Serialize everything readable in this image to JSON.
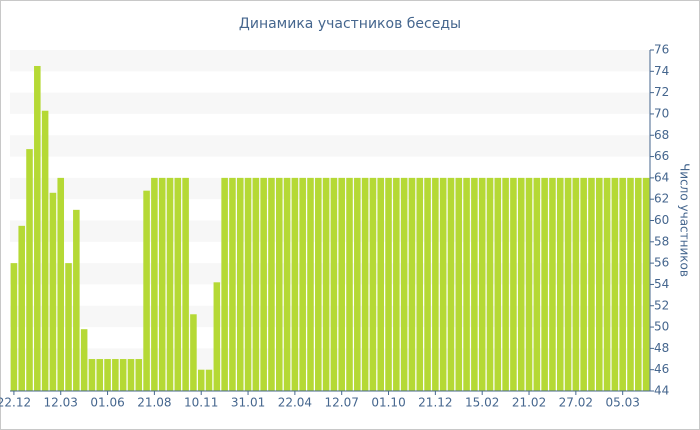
{
  "chart_data": {
    "type": "bar",
    "title": "Динамика участников беседы",
    "y_label": "Число участников",
    "categories": [
      "22.12",
      null,
      null,
      null,
      null,
      null,
      "12.03",
      null,
      null,
      null,
      null,
      null,
      "01.06",
      null,
      null,
      null,
      null,
      null,
      "21.08",
      null,
      null,
      null,
      null,
      null,
      "10.11",
      null,
      null,
      null,
      null,
      null,
      "31.01",
      null,
      null,
      null,
      null,
      null,
      "22.04",
      null,
      null,
      null,
      null,
      null,
      "12.07",
      null,
      null,
      null,
      null,
      null,
      "01.10",
      null,
      null,
      null,
      null,
      null,
      "21.12",
      null,
      null,
      null,
      null,
      null,
      "15.02",
      null,
      null,
      null,
      null,
      null,
      "21.02",
      null,
      null,
      null,
      null,
      null,
      "27.02",
      null,
      null,
      null,
      null,
      null,
      "05.03",
      null,
      null,
      null
    ],
    "values": [
      56,
      59.5,
      66.7,
      74.5,
      70.3,
      62.6,
      64,
      56,
      61,
      49.8,
      47,
      47,
      47,
      47,
      47,
      47,
      47,
      62.8,
      64,
      64,
      64,
      64,
      64,
      51.2,
      46,
      46,
      54.2,
      64,
      64,
      64,
      64,
      64,
      64,
      64,
      64,
      64,
      64,
      64,
      64,
      64,
      64,
      64,
      64,
      64,
      64,
      64,
      64,
      64,
      64,
      64,
      64,
      64,
      64,
      64,
      64,
      64,
      64,
      64,
      64,
      64,
      64,
      64,
      64,
      64,
      64,
      64,
      64,
      64,
      64,
      64,
      64,
      64,
      64,
      64,
      64,
      64,
      64,
      64,
      64,
      64,
      64,
      64
    ],
    "color": "#b5d935",
    "ylim": [
      44,
      76
    ],
    "yticks": [
      44,
      46,
      48,
      50,
      52,
      54,
      56,
      58,
      60,
      62,
      64,
      66,
      68,
      70,
      72,
      74,
      76
    ],
    "grid": "bands",
    "y_axis_side": "right"
  }
}
